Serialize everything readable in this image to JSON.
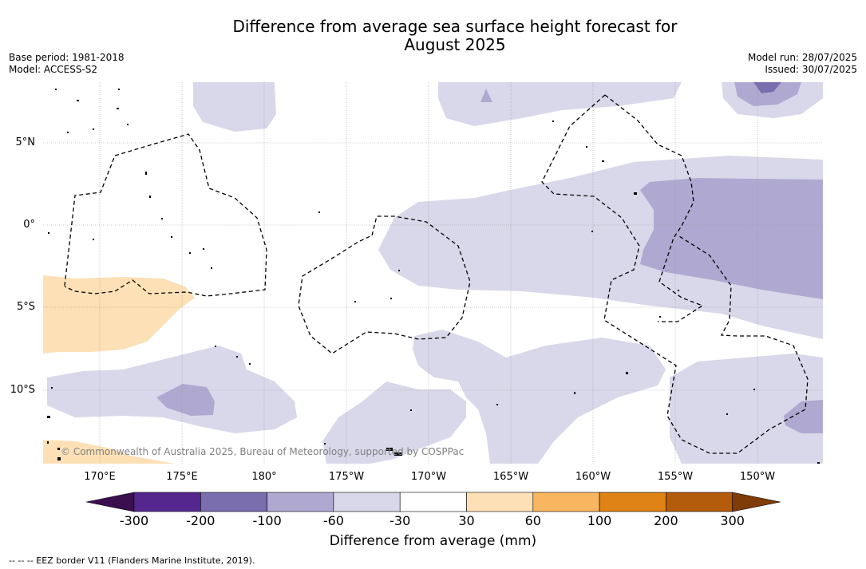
{
  "header": {
    "title_line1": "Difference from average sea surface height forecast for",
    "title_line2": "August 2025",
    "base_period": "Base period: 1981-2018",
    "model": "Model: ACCESS-S2",
    "model_run": "Model run: 28/07/2025",
    "issued": "Issued: 30/07/2025"
  },
  "map": {
    "lat_labels": [
      "5°N",
      "0°",
      "5°S",
      "10°S"
    ],
    "lon_labels": [
      "170°E",
      "175°E",
      "180°",
      "175°W",
      "170°W",
      "165°W",
      "160°W",
      "155°W",
      "150°W"
    ],
    "copyright": "© Commonwealth of Australia 2025, Bureau of Meteorology, supported by COSPPac"
  },
  "colorbar": {
    "tick_labels": [
      "-300",
      "-200",
      "-100",
      "-60",
      "-30",
      "30",
      "60",
      "100",
      "200",
      "300"
    ],
    "title": "Difference from average (mm)",
    "colors": [
      "#3b0f4f",
      "#54278f",
      "#7a6eae",
      "#afa9d1",
      "#d8d8ea",
      "#ffffff",
      "#fde0b6",
      "#f9b660",
      "#e08316",
      "#b35c0c",
      "#7f3b08"
    ]
  },
  "footer": {
    "legend_note": "--  --  -- EEZ border V11 (Flanders Marine Institute, 2019)."
  }
}
